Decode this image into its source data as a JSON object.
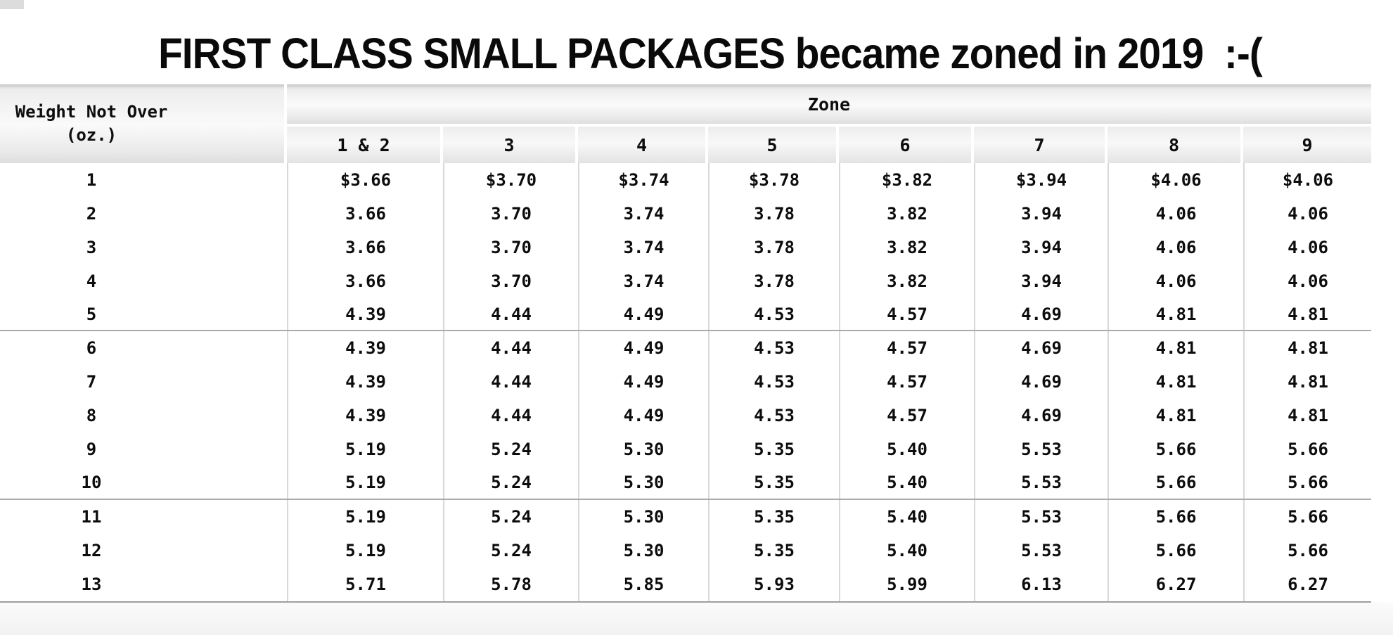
{
  "title": "FIRST CLASS SMALL PACKAGES became zoned in 2019  :-(",
  "table": {
    "weight_header_line1": "Weight Not Over",
    "weight_header_line2": "(oz.)",
    "zone_header": "Zone",
    "zone_columns": [
      "1 & 2",
      "3",
      "4",
      "5",
      "6",
      "7",
      "8",
      "9"
    ],
    "rows": [
      {
        "weight": "1",
        "values": [
          "$3.66",
          "$3.70",
          "$3.74",
          "$3.78",
          "$3.82",
          "$3.94",
          "$4.06",
          "$4.06"
        ]
      },
      {
        "weight": "2",
        "values": [
          "3.66",
          "3.70",
          "3.74",
          "3.78",
          "3.82",
          "3.94",
          "4.06",
          "4.06"
        ]
      },
      {
        "weight": "3",
        "values": [
          "3.66",
          "3.70",
          "3.74",
          "3.78",
          "3.82",
          "3.94",
          "4.06",
          "4.06"
        ]
      },
      {
        "weight": "4",
        "values": [
          "3.66",
          "3.70",
          "3.74",
          "3.78",
          "3.82",
          "3.94",
          "4.06",
          "4.06"
        ]
      },
      {
        "weight": "5",
        "values": [
          "4.39",
          "4.44",
          "4.49",
          "4.53",
          "4.57",
          "4.69",
          "4.81",
          "4.81"
        ]
      },
      {
        "weight": "6",
        "values": [
          "4.39",
          "4.44",
          "4.49",
          "4.53",
          "4.57",
          "4.69",
          "4.81",
          "4.81"
        ]
      },
      {
        "weight": "7",
        "values": [
          "4.39",
          "4.44",
          "4.49",
          "4.53",
          "4.57",
          "4.69",
          "4.81",
          "4.81"
        ]
      },
      {
        "weight": "8",
        "values": [
          "4.39",
          "4.44",
          "4.49",
          "4.53",
          "4.57",
          "4.69",
          "4.81",
          "4.81"
        ]
      },
      {
        "weight": "9",
        "values": [
          "5.19",
          "5.24",
          "5.30",
          "5.35",
          "5.40",
          "5.53",
          "5.66",
          "5.66"
        ]
      },
      {
        "weight": "10",
        "values": [
          "5.19",
          "5.24",
          "5.30",
          "5.35",
          "5.40",
          "5.53",
          "5.66",
          "5.66"
        ]
      },
      {
        "weight": "11",
        "values": [
          "5.19",
          "5.24",
          "5.30",
          "5.35",
          "5.40",
          "5.53",
          "5.66",
          "5.66"
        ]
      },
      {
        "weight": "12",
        "values": [
          "5.19",
          "5.24",
          "5.30",
          "5.35",
          "5.40",
          "5.53",
          "5.66",
          "5.66"
        ]
      },
      {
        "weight": "13",
        "values": [
          "5.71",
          "5.78",
          "5.85",
          "5.93",
          "5.99",
          "6.13",
          "6.27",
          "6.27"
        ]
      }
    ],
    "group_end_rows": [
      5,
      10
    ],
    "colors": {
      "header_gradient_top": "#c7c7c7",
      "header_gradient_mid": "#fafafa",
      "header_gradient_bottom": "#dedede",
      "column_separator": "#d8d8d8",
      "group_separator": "#ababab",
      "table_bottom_border": "#9f9f9f",
      "text": "#0d0d0d"
    }
  }
}
